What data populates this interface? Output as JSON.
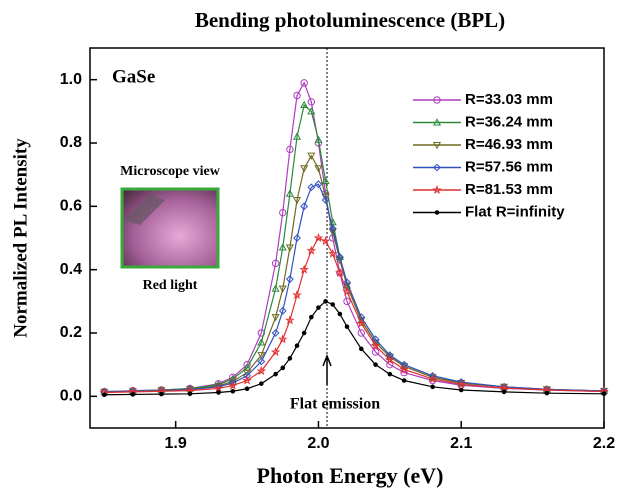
{
  "chart_data": {
    "type": "line",
    "title": "Bending photoluminescence (BPL)",
    "x_label": "Photon Energy (eV)",
    "y_label": "Normalized PL Intensity",
    "annotations": {
      "sample": "GaSe",
      "inset_top": "Microscope view",
      "inset_bottom": "Red light",
      "arrow_label": "Flat emission"
    },
    "reference_x": 2.006,
    "x": [
      1.85,
      1.87,
      1.89,
      1.91,
      1.93,
      1.94,
      1.95,
      1.96,
      1.97,
      1.975,
      1.98,
      1.985,
      1.99,
      1.995,
      2.0,
      2.005,
      2.01,
      2.015,
      2.02,
      2.03,
      2.04,
      2.05,
      2.06,
      2.08,
      2.1,
      2.13,
      2.16,
      2.2
    ],
    "series": [
      {
        "name": "R=33.03 mm",
        "color": "#b03cc0",
        "marker": "circle",
        "values": [
          0.015,
          0.018,
          0.02,
          0.025,
          0.04,
          0.06,
          0.1,
          0.2,
          0.42,
          0.58,
          0.78,
          0.95,
          0.99,
          0.93,
          0.8,
          0.64,
          0.5,
          0.39,
          0.3,
          0.2,
          0.14,
          0.1,
          0.075,
          0.05,
          0.035,
          0.025,
          0.02,
          0.015
        ]
      },
      {
        "name": "R=36.24 mm",
        "color": "#2a8a3a",
        "marker": "triangle",
        "values": [
          0.015,
          0.017,
          0.02,
          0.024,
          0.037,
          0.055,
          0.09,
          0.17,
          0.34,
          0.47,
          0.64,
          0.82,
          0.92,
          0.9,
          0.81,
          0.68,
          0.55,
          0.44,
          0.35,
          0.24,
          0.17,
          0.125,
          0.095,
          0.06,
          0.042,
          0.03,
          0.022,
          0.017
        ]
      },
      {
        "name": "R=46.93 mm",
        "color": "#6e6a22",
        "marker": "triangle-down",
        "values": [
          0.014,
          0.016,
          0.019,
          0.022,
          0.033,
          0.047,
          0.075,
          0.13,
          0.25,
          0.34,
          0.47,
          0.62,
          0.72,
          0.76,
          0.72,
          0.63,
          0.52,
          0.43,
          0.35,
          0.24,
          0.17,
          0.125,
          0.095,
          0.06,
          0.042,
          0.03,
          0.022,
          0.017
        ]
      },
      {
        "name": "R=57.56 mm",
        "color": "#3050c0",
        "marker": "diamond",
        "values": [
          0.014,
          0.016,
          0.018,
          0.021,
          0.03,
          0.042,
          0.065,
          0.11,
          0.2,
          0.27,
          0.37,
          0.5,
          0.6,
          0.66,
          0.67,
          0.62,
          0.53,
          0.44,
          0.36,
          0.25,
          0.18,
          0.13,
          0.1,
          0.065,
          0.045,
          0.03,
          0.022,
          0.017
        ]
      },
      {
        "name": "R=81.53 mm",
        "color": "#e03030",
        "marker": "star",
        "values": [
          0.012,
          0.014,
          0.016,
          0.018,
          0.025,
          0.034,
          0.05,
          0.08,
          0.14,
          0.18,
          0.24,
          0.32,
          0.4,
          0.46,
          0.5,
          0.49,
          0.45,
          0.39,
          0.33,
          0.23,
          0.16,
          0.115,
          0.085,
          0.055,
          0.038,
          0.026,
          0.02,
          0.015
        ]
      },
      {
        "name": "Flat R=infinity",
        "color": "#000000",
        "marker": "dot",
        "values": [
          0.005,
          0.006,
          0.007,
          0.008,
          0.012,
          0.016,
          0.024,
          0.04,
          0.07,
          0.09,
          0.12,
          0.16,
          0.2,
          0.25,
          0.28,
          0.3,
          0.29,
          0.26,
          0.22,
          0.15,
          0.1,
          0.07,
          0.05,
          0.03,
          0.02,
          0.014,
          0.01,
          0.008
        ]
      }
    ],
    "xlim": [
      1.84,
      2.2
    ],
    "ylim": [
      -0.1,
      1.1
    ],
    "xticks": [
      1.9,
      {
        "value": 2.0,
        "label": "2.0"
      },
      2.1,
      2.2
    ],
    "yticks": [
      {
        "value": 0,
        "label": "0.0"
      },
      0.2,
      0.4,
      0.6,
      0.8,
      {
        "value": 1.0,
        "label": "1.0"
      }
    ],
    "legend": "upper right"
  }
}
